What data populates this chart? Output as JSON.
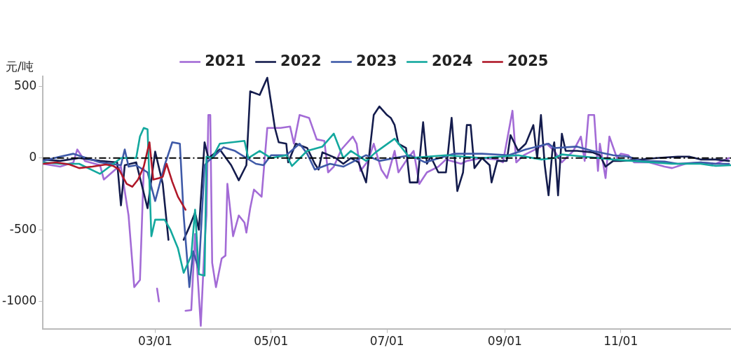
{
  "chart_data": {
    "type": "line",
    "ylabel": "元/吨",
    "xlim": [
      "--01-01",
      "--12-29"
    ],
    "xticks": [
      {
        "value": "--03-01",
        "label": "03/01"
      },
      {
        "value": "--05-01",
        "label": "05/01"
      },
      {
        "value": "--07-01",
        "label": "07/01"
      },
      {
        "value": "--09-01",
        "label": "09/01"
      },
      {
        "value": "--11-01",
        "label": "11/01"
      }
    ],
    "ylim": [
      -1190,
      570
    ],
    "yticks": [
      -1000,
      -500,
      0,
      500
    ],
    "grid": false,
    "legend": "top",
    "marker": "none",
    "line_style": "solid",
    "ref_lines": [
      {
        "axis": "y",
        "value": 0,
        "color": "#000000",
        "line_style": "dashed"
      }
    ],
    "series": [
      {
        "name": "2021",
        "color": "#a36bd6",
        "x": [
          "--01-01",
          "--01-10",
          "--01-17",
          "--01-19",
          "--01-23",
          "--01-31",
          "--02-02",
          "--02-08",
          "--02-11",
          "--02-15",
          "--02-18",
          "--02-21",
          "--02-23",
          "--02-25",
          "--02-28",
          "--03-02",
          "--03-03",
          "--03-05",
          "--03-12",
          "--03-17",
          "--03-20",
          "--03-22",
          "--03-25",
          "--03-27",
          "--03-28",
          "--03-29",
          "--03-30",
          "--03-31",
          "--04-02",
          "--04-05",
          "--04-07",
          "--04-08",
          "--04-11",
          "--04-14",
          "--04-17",
          "--04-18",
          "--04-20",
          "--04-22",
          "--04-26",
          "--04-29",
          "--05-06",
          "--05-11",
          "--05-13",
          "--05-16",
          "--05-21",
          "--05-25",
          "--05-29",
          "--05-31",
          "--06-03",
          "--06-07",
          "--06-13",
          "--06-15",
          "--06-17",
          "--06-21",
          "--06-24",
          "--06-28",
          "--07-01",
          "--07-05",
          "--07-07",
          "--07-11",
          "--07-15",
          "--07-18",
          "--07-22",
          "--07-28",
          "--08-01",
          "--08-09",
          "--08-12",
          "--08-20",
          "--08-28",
          "--08-31",
          "--09-05",
          "--09-07",
          "--09-11",
          "--09-23",
          "--09-27",
          "--10-01",
          "--10-07",
          "--10-11",
          "--10-13",
          "--10-15",
          "--10-18",
          "--10-20",
          "--10-21",
          "--10-24",
          "--10-26",
          "--10-30",
          "--11-01",
          "--11-05",
          "--11-08",
          "--11-16",
          "--11-24",
          "--11-28",
          "--12-05",
          "--12-13",
          "--12-21",
          "--12-28"
        ],
        "values": [
          -40,
          -60,
          -30,
          60,
          -20,
          -50,
          -150,
          -80,
          -60,
          -400,
          -900,
          -850,
          -75,
          null,
          null,
          -910,
          -1000,
          null,
          null,
          -1065,
          -1060,
          -530,
          -1170,
          -600,
          -400,
          300,
          300,
          -730,
          -900,
          -700,
          -680,
          -180,
          -545,
          -400,
          -450,
          -520,
          -350,
          -220,
          -270,
          210,
          210,
          220,
          100,
          300,
          280,
          130,
          120,
          -100,
          -60,
          60,
          150,
          100,
          -90,
          -20,
          100,
          -80,
          -140,
          50,
          -100,
          -20,
          50,
          -180,
          -100,
          -60,
          -10,
          -40,
          -20,
          0,
          -10,
          -30,
          330,
          -30,
          20,
          100,
          50,
          -30,
          50,
          150,
          -20,
          300,
          300,
          -90,
          100,
          -140,
          150,
          0,
          30,
          20,
          -30,
          -30,
          -60,
          -70,
          -40,
          -30,
          -40,
          0
        ]
      },
      {
        "name": "2022",
        "color": "#141c4d",
        "x": [
          "--01-01",
          "--01-10",
          "--01-20",
          "--01-31",
          "--02-09",
          "--02-11",
          "--02-13",
          "--02-19",
          "--02-25",
          "--03-01",
          "--03-05",
          "--03-08",
          "--03-10",
          "--03-13",
          "--03-16",
          "--03-19",
          "--03-22",
          "--03-24",
          "--03-27",
          "--03-29",
          "--04-04",
          "--04-10",
          "--04-14",
          "--04-18",
          "--04-20",
          "--04-25",
          "--04-29",
          "--05-03",
          "--05-05",
          "--05-09",
          "--05-10",
          "--05-14",
          "--05-20",
          "--05-24",
          "--05-26",
          "--05-28",
          "--06-04",
          "--06-08",
          "--06-12",
          "--06-16",
          "--06-20",
          "--06-24",
          "--06-27",
          "--07-01",
          "--07-03",
          "--07-05",
          "--07-07",
          "--07-11",
          "--07-13",
          "--07-17",
          "--07-20",
          "--07-22",
          "--07-24",
          "--07-28",
          "--08-01",
          "--08-04",
          "--08-07",
          "--08-10",
          "--08-12",
          "--08-14",
          "--08-16",
          "--08-20",
          "--08-24",
          "--08-25",
          "--08-28",
          "--09-02",
          "--09-04",
          "--09-08",
          "--09-12",
          "--09-16",
          "--09-18",
          "--09-20",
          "--09-22",
          "--09-24",
          "--09-26",
          "--09-27",
          "--09-28",
          "--09-29",
          "--10-01",
          "--10-03",
          "--10-09",
          "--10-17",
          "--10-21",
          "--10-24",
          "--10-28",
          "--11-01",
          "--11-12",
          "--11-20",
          "--12-01",
          "--12-07",
          "--12-13",
          "--12-21",
          "--12-28"
        ],
        "values": [
          -10,
          -20,
          0,
          -20,
          -30,
          -330,
          -50,
          -30,
          -350,
          45,
          -180,
          -570,
          null,
          null,
          -570,
          -480,
          -380,
          -500,
          110,
          0,
          60,
          -50,
          -155,
          -50,
          465,
          440,
          560,
          210,
          110,
          100,
          -30,
          100,
          70,
          -40,
          -80,
          40,
          0,
          -40,
          0,
          -30,
          -170,
          300,
          360,
          300,
          280,
          230,
          100,
          70,
          -170,
          -170,
          250,
          -40,
          10,
          -100,
          -100,
          280,
          -230,
          -100,
          230,
          230,
          -70,
          0,
          -50,
          -170,
          -20,
          -20,
          160,
          50,
          100,
          230,
          0,
          300,
          -50,
          -260,
          50,
          110,
          -60,
          -260,
          170,
          50,
          50,
          40,
          20,
          -60,
          -20,
          -20,
          -10,
          0,
          10,
          10,
          -10,
          -10,
          -20
        ]
      },
      {
        "name": "2023",
        "color": "#3f5aa8",
        "x": [
          "--01-01",
          "--01-10",
          "--01-17",
          "--01-31",
          "--02-11",
          "--02-13",
          "--02-15",
          "--02-19",
          "--02-25",
          "--03-01",
          "--03-04",
          "--03-06",
          "--03-10",
          "--03-14",
          "--03-16",
          "--03-19",
          "--03-21",
          "--03-24",
          "--03-27",
          "--03-29",
          "--03-31",
          "--04-06",
          "--04-12",
          "--04-23",
          "--04-27",
          "--05-01",
          "--05-09",
          "--05-16",
          "--05-20",
          "--05-24",
          "--06-01",
          "--06-08",
          "--06-20",
          "--06-27",
          "--07-13",
          "--07-21",
          "--08-05",
          "--08-20",
          "--09-03",
          "--09-12",
          "--09-24",
          "--09-27",
          "--10-09",
          "--10-17",
          "--10-28",
          "--11-05",
          "--11-12",
          "--11-24",
          "--12-01",
          "--12-13",
          "--12-21",
          "--12-28"
        ],
        "values": [
          -20,
          10,
          30,
          -30,
          -50,
          60,
          -60,
          -50,
          -100,
          -300,
          -150,
          -50,
          110,
          100,
          -400,
          -900,
          -650,
          -780,
          -50,
          -20,
          0,
          75,
          50,
          -40,
          -50,
          20,
          20,
          100,
          30,
          -80,
          -40,
          -60,
          20,
          -20,
          20,
          -30,
          30,
          30,
          20,
          60,
          100,
          70,
          80,
          50,
          20,
          10,
          -20,
          -25,
          -40,
          -30,
          -40,
          -40
        ]
      },
      {
        "name": "2024",
        "color": "#13a89e",
        "x": [
          "--01-01",
          "--01-10",
          "--01-20",
          "--01-31",
          "--02-06",
          "--02-11",
          "--02-19",
          "--02-21",
          "--02-23",
          "--02-25",
          "--02-27",
          "--03-01",
          "--03-06",
          "--03-09",
          "--03-13",
          "--03-16",
          "--03-20",
          "--03-22",
          "--03-24",
          "--03-27",
          "--03-28",
          "--03-31",
          "--04-04",
          "--04-17",
          "--04-19",
          "--04-25",
          "--05-01",
          "--05-09",
          "--05-12",
          "--05-20",
          "--05-28",
          "--06-03",
          "--06-08",
          "--06-12",
          "--06-20",
          "--06-25",
          "--07-05",
          "--07-13",
          "--08-01",
          "--08-20",
          "--09-08",
          "--09-20",
          "--09-27",
          "--10-01",
          "--10-09",
          "--10-28",
          "--11-12",
          "--11-28",
          "--12-13",
          "--12-21",
          "--12-29"
        ],
        "values": [
          -30,
          -40,
          -40,
          -110,
          -50,
          0,
          0,
          150,
          210,
          200,
          -545,
          -430,
          -430,
          -500,
          -630,
          -800,
          -680,
          -360,
          -810,
          -820,
          10,
          0,
          100,
          120,
          0,
          50,
          0,
          20,
          -55,
          50,
          80,
          170,
          0,
          50,
          -20,
          40,
          135,
          0,
          20,
          0,
          20,
          -10,
          0,
          25,
          15,
          -10,
          -25,
          -40,
          -40,
          -55,
          -50
        ]
      },
      {
        "name": "2025",
        "color": "#b01829",
        "x": [
          "--01-01",
          "--01-08",
          "--01-15",
          "--01-20",
          "--01-27",
          "--02-03",
          "--02-07",
          "--02-10",
          "--02-14",
          "--02-17",
          "--02-20",
          "--02-23",
          "--02-26",
          "--02-28",
          "--03-03",
          "--03-05",
          "--03-07",
          "--03-10",
          "--03-13",
          "--03-17"
        ],
        "values": [
          -40,
          -30,
          -45,
          -70,
          -60,
          -45,
          -55,
          -80,
          -180,
          -200,
          -150,
          -60,
          110,
          -150,
          -140,
          -130,
          -40,
          -165,
          -270,
          -360
        ]
      }
    ]
  }
}
